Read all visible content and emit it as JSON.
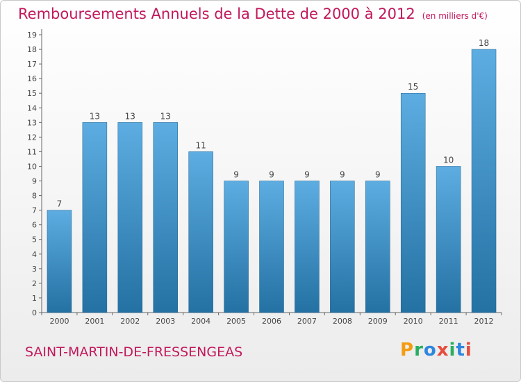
{
  "header": {
    "title": "Remboursements Annuels de la Dette de 2000 à 2012",
    "unit": "(en milliers d'€)"
  },
  "footer": {
    "commune": "SAINT-MARTIN-DE-FRESSENGEAS",
    "logo": {
      "letters": [
        "P",
        "r",
        "o",
        "x",
        "i",
        "t",
        "i"
      ],
      "colors": [
        "#f39c12",
        "#27ae60",
        "#2e86de",
        "#e74c3c",
        "#27ae60",
        "#2e86de",
        "#e74c3c"
      ]
    }
  },
  "colors": {
    "bar_top": "#5dade2",
    "bar_bottom": "#2471a3",
    "title": "#c2185b"
  },
  "chart_data": {
    "type": "bar",
    "title": "Remboursements Annuels de la Dette de 2000 à 2012",
    "subtitle": "(en milliers d'€)",
    "categories": [
      "2000",
      "2001",
      "2002",
      "2003",
      "2004",
      "2005",
      "2006",
      "2007",
      "2008",
      "2009",
      "2010",
      "2011",
      "2012"
    ],
    "values": [
      7,
      13,
      13,
      13,
      11,
      9,
      9,
      9,
      9,
      9,
      15,
      10,
      18
    ],
    "yticks": [
      "0",
      "1",
      "2",
      "3",
      "4",
      "5",
      "6",
      "7",
      "8",
      "9",
      "10",
      "11",
      "12",
      "13",
      "14",
      "15",
      "16",
      "17",
      "18",
      "19"
    ],
    "ylim": [
      0,
      19
    ],
    "grid": false,
    "data_labels": true
  }
}
